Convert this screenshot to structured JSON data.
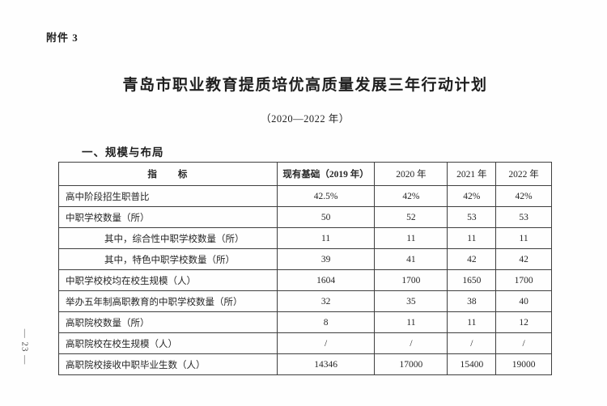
{
  "page": {
    "attachment_label": "附件 3",
    "title": "青岛市职业教育提质培优高质量发展三年行动计划",
    "subtitle": "（2020—2022 年）",
    "section_heading": "一、规模与布局",
    "page_number": "— 23 —"
  },
  "table": {
    "headers": [
      "指　　标",
      "现有基础（2019 年）",
      "2020 年",
      "2021 年",
      "2022 年"
    ],
    "rows": [
      {
        "label": "高中阶段招生职普比",
        "values": [
          "42.5%",
          "42%",
          "42%",
          "42%"
        ]
      },
      {
        "label": "中职学校数量（所）",
        "values": [
          "50",
          "52",
          "53",
          "53"
        ]
      },
      {
        "label": "其中，综合性中职学校数量（所）",
        "values": [
          "11",
          "11",
          "11",
          "11"
        ]
      },
      {
        "label": "其中，特色中职学校数量（所）",
        "values": [
          "39",
          "41",
          "42",
          "42"
        ]
      },
      {
        "label": "中职学校校均在校生规模（人）",
        "values": [
          "1604",
          "1700",
          "1650",
          "1700"
        ]
      },
      {
        "label": "举办五年制高职教育的中职学校数量（所）",
        "values": [
          "32",
          "35",
          "38",
          "40"
        ]
      },
      {
        "label": "高职院校数量（所）",
        "values": [
          "8",
          "11",
          "11",
          "12"
        ]
      },
      {
        "label": "高职院校在校生规模（人）",
        "values": [
          "/",
          "/",
          "/",
          "/"
        ]
      },
      {
        "label": "高职院校接收中职毕业生数（人）",
        "values": [
          "14346",
          "17000",
          "15400",
          "19000"
        ]
      }
    ]
  },
  "colors": {
    "text": "#262626",
    "border": "#3f3f3f",
    "background": "#fefefe"
  }
}
